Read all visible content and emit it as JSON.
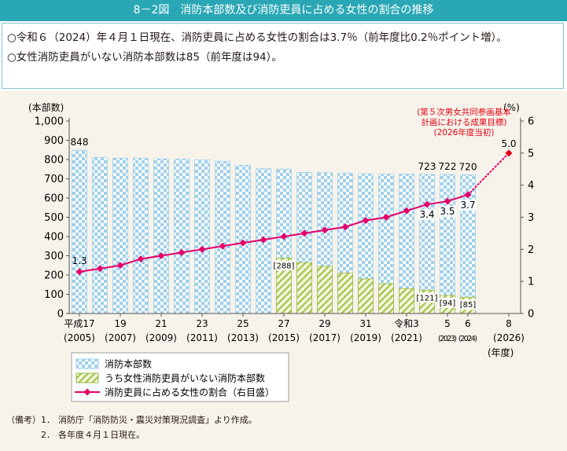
{
  "header": {
    "title": "8－2図　消防本部数及び消防吏員に占める女性の割合の推移"
  },
  "summary": {
    "line1": "○令和６（2024）年４月１日現在、消防吏員に占める女性の割合は3.7％（前年度比0.2％ポイント増）。",
    "line2": "○女性消防吏員がいない消防本部数は85（前年度は94）。"
  },
  "notes": {
    "label": "（備考）",
    "items": [
      {
        "num": "1．",
        "text": "消防庁「消防防災・震災対策現況調査」より作成。"
      },
      {
        "num": "2．",
        "text": "各年度４月１日現在。"
      }
    ]
  },
  "colors": {
    "bar_checker": "#9fd0ec",
    "bar_stripe": "#a8c84a",
    "line": "#e5006a",
    "target": "#e60012",
    "header_bg": "#2aa7b5",
    "chart_bg": "#f7f3ea"
  },
  "chart_data": {
    "type": "bar",
    "ylabel_left": "(本部数)",
    "ylabel_right": "(%)",
    "xlabel": "(年度)",
    "ylim_left": [
      0,
      1000
    ],
    "ylim_right": [
      0,
      6
    ],
    "yticks_left": [
      "0",
      "100",
      "200",
      "300",
      "400",
      "500",
      "600",
      "700",
      "800",
      "900",
      "1,000"
    ],
    "yticks_right": [
      "0",
      "1",
      "2",
      "3",
      "4",
      "5",
      "6"
    ],
    "x_tick_labels": [
      {
        "index": 0,
        "top": "平成17",
        "bottom": "(2005)"
      },
      {
        "index": 2,
        "top": "19",
        "bottom": "(2007)"
      },
      {
        "index": 4,
        "top": "21",
        "bottom": "(2009)"
      },
      {
        "index": 6,
        "top": "23",
        "bottom": "(2011)"
      },
      {
        "index": 8,
        "top": "25",
        "bottom": "(2013)"
      },
      {
        "index": 10,
        "top": "27",
        "bottom": "(2015)"
      },
      {
        "index": 12,
        "top": "29",
        "bottom": "(2017)"
      },
      {
        "index": 14,
        "top": "31",
        "bottom": "(2019)"
      },
      {
        "index": 16,
        "top": "令和3",
        "bottom": "(2021)"
      },
      {
        "index": 18,
        "top": "5",
        "bottom": "(2023)"
      },
      {
        "index": 19,
        "top": "6",
        "bottom": "(2024)"
      },
      {
        "index": 21,
        "top": "8",
        "bottom": "(2026)"
      }
    ],
    "x": [
      2005,
      2006,
      2007,
      2008,
      2009,
      2010,
      2011,
      2012,
      2013,
      2014,
      2015,
      2016,
      2017,
      2018,
      2019,
      2020,
      2021,
      2022,
      2023,
      2024
    ],
    "series": [
      {
        "name": "消防本部数",
        "axis": "left",
        "values": [
          848,
          811,
          807,
          807,
          803,
          802,
          798,
          791,
          770,
          752,
          750,
          733,
          732,
          728,
          726,
          724,
          724,
          723,
          722,
          720
        ]
      },
      {
        "name": "うち女性消防吏員がいない消防本部数",
        "axis": "left",
        "values": [
          null,
          null,
          null,
          null,
          null,
          null,
          null,
          null,
          null,
          null,
          288,
          265,
          245,
          210,
          180,
          155,
          130,
          121,
          94,
          85
        ]
      },
      {
        "name": "消防吏員に占める女性の割合（右目盛）",
        "axis": "right",
        "values": [
          1.3,
          1.4,
          1.5,
          1.7,
          1.8,
          1.9,
          2.0,
          2.1,
          2.2,
          2.3,
          2.4,
          2.5,
          2.6,
          2.7,
          2.9,
          3.0,
          3.2,
          3.4,
          3.5,
          3.7
        ]
      }
    ],
    "data_labels": {
      "bars": [
        {
          "index": 0,
          "text": "848"
        },
        {
          "index": 17,
          "text": "723"
        },
        {
          "index": 18,
          "text": "722"
        },
        {
          "index": 19,
          "text": "720"
        }
      ],
      "stripe": [
        {
          "index": 10,
          "text": "[288]"
        },
        {
          "index": 17,
          "text": "[121]"
        },
        {
          "index": 18,
          "text": "[94]"
        },
        {
          "index": 19,
          "text": "[85]"
        }
      ],
      "line": [
        {
          "index": 0,
          "text": "1.3"
        },
        {
          "index": 17,
          "text": "3.4"
        },
        {
          "index": 18,
          "text": "3.5"
        },
        {
          "index": 19,
          "text": "3.7"
        }
      ]
    },
    "target": {
      "x_index": 21,
      "value": 5.0,
      "label": "5.0",
      "annotation": [
        "(第５次男女共同参画基本",
        "計画における成果目標)",
        "(2026年度当初)"
      ]
    },
    "legend": {
      "placement": "bottom-left",
      "items": [
        "消防本部数",
        "うち女性消防吏員がいない消防本部数",
        "消防吏員に占める女性の割合（右目盛）"
      ]
    }
  }
}
